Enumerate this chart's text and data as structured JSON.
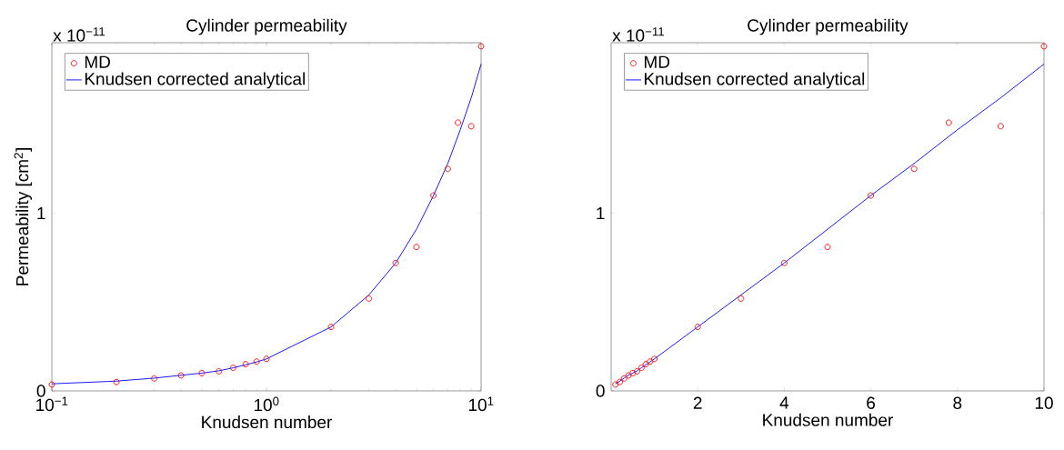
{
  "chart_data": [
    {
      "type": "line",
      "title": "Cylinder permeability",
      "xlabel": "Knudsen number",
      "ylabel": "Permeability [cm$^{2}$]",
      "log": "x",
      "legend": "top left",
      "xlim": [
        0.1,
        10
      ],
      "xticks": [
        {
          "value": 0.1,
          "label": "10$^{−1}$"
        },
        {
          "value": 1,
          "label": "10$^{0}$"
        },
        {
          "value": 10,
          "label": "10$^{1}$"
        }
      ],
      "ylim": [
        0,
        1.96
      ],
      "yticks": [
        0,
        1
      ],
      "annotations": [
        "x 10$^{−11}$"
      ],
      "series": [
        {
          "name": "MD",
          "type": "scatter",
          "marker": "circle",
          "color": "#ff0000",
          "x": [
            0.1,
            0.2,
            0.3,
            0.4,
            0.5,
            0.6,
            0.7,
            0.8,
            0.9,
            1,
            2,
            3,
            4,
            5,
            6,
            7,
            7.8,
            9,
            10
          ],
          "values": [
            0.036,
            0.05,
            0.07,
            0.087,
            0.1,
            0.11,
            0.13,
            0.15,
            0.165,
            0.18,
            0.36,
            0.52,
            0.72,
            0.81,
            1.1,
            1.25,
            1.51,
            1.49,
            1.94
          ]
        },
        {
          "name": "Knudsen corrected analytical",
          "type": "line",
          "marker": "none",
          "color": "#0000ff",
          "x": [
            0.1,
            0.2,
            0.3,
            0.4,
            0.5,
            0.6,
            0.7,
            0.8,
            0.9,
            1,
            2,
            3,
            4,
            5,
            6,
            7,
            8,
            9,
            10
          ],
          "values": [
            0.04,
            0.055,
            0.072,
            0.088,
            0.1,
            0.113,
            0.13,
            0.147,
            0.163,
            0.18,
            0.36,
            0.54,
            0.72,
            0.91,
            1.1,
            1.28,
            1.47,
            1.65,
            1.84
          ]
        }
      ]
    },
    {
      "type": "line",
      "title": "Cylinder permeability",
      "xlabel": "Knudsen number",
      "legend": "top left",
      "xlim": [
        0,
        10
      ],
      "xticks": [
        2,
        4,
        6,
        8,
        10
      ],
      "ylim": [
        0,
        1.96
      ],
      "yticks": [
        0,
        1
      ],
      "annotations": [
        "x 10$^{−11}$"
      ],
      "series": [
        {
          "name": "MD",
          "type": "scatter",
          "marker": "circle",
          "color": "#ff0000",
          "x": [
            0.1,
            0.2,
            0.3,
            0.4,
            0.5,
            0.6,
            0.7,
            0.8,
            0.9,
            1,
            2,
            3,
            4,
            5,
            6,
            7,
            7.8,
            9,
            10
          ],
          "values": [
            0.036,
            0.05,
            0.07,
            0.087,
            0.1,
            0.11,
            0.13,
            0.15,
            0.165,
            0.18,
            0.36,
            0.52,
            0.72,
            0.81,
            1.1,
            1.25,
            1.51,
            1.49,
            1.94
          ]
        },
        {
          "name": "Knudsen corrected analytical",
          "type": "line",
          "marker": "none",
          "color": "#0000ff",
          "x": [
            0.1,
            0.2,
            0.3,
            0.4,
            0.5,
            0.6,
            0.7,
            0.8,
            0.9,
            1,
            2,
            3,
            4,
            5,
            6,
            7,
            8,
            9,
            10
          ],
          "values": [
            0.04,
            0.055,
            0.072,
            0.088,
            0.1,
            0.113,
            0.13,
            0.147,
            0.163,
            0.18,
            0.36,
            0.54,
            0.72,
            0.91,
            1.1,
            1.28,
            1.47,
            1.65,
            1.84
          ]
        }
      ]
    }
  ]
}
